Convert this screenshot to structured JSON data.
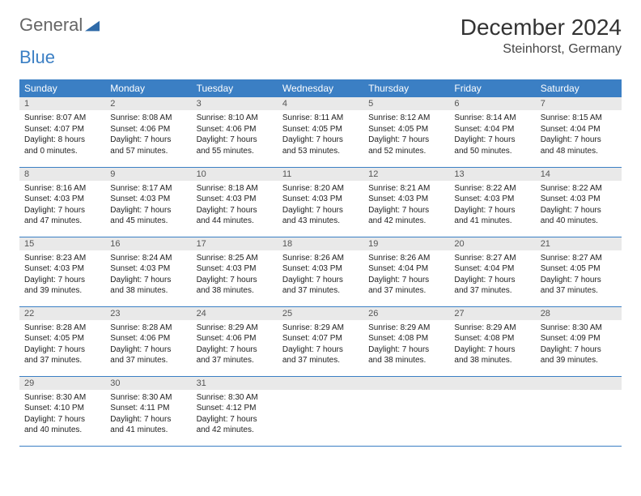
{
  "logo": {
    "text1": "General",
    "text2": "Blue"
  },
  "title": {
    "month": "December 2024",
    "location": "Steinhorst, Germany"
  },
  "dayHeaders": [
    "Sunday",
    "Monday",
    "Tuesday",
    "Wednesday",
    "Thursday",
    "Friday",
    "Saturday"
  ],
  "colors": {
    "headerBg": "#3b7fc4",
    "headerText": "#ffffff",
    "dayNumBg": "#e9e9e9",
    "border": "#3b7fc4"
  },
  "weeks": [
    [
      {
        "n": "1",
        "sr": "Sunrise: 8:07 AM",
        "ss": "Sunset: 4:07 PM",
        "d1": "Daylight: 8 hours",
        "d2": "and 0 minutes."
      },
      {
        "n": "2",
        "sr": "Sunrise: 8:08 AM",
        "ss": "Sunset: 4:06 PM",
        "d1": "Daylight: 7 hours",
        "d2": "and 57 minutes."
      },
      {
        "n": "3",
        "sr": "Sunrise: 8:10 AM",
        "ss": "Sunset: 4:06 PM",
        "d1": "Daylight: 7 hours",
        "d2": "and 55 minutes."
      },
      {
        "n": "4",
        "sr": "Sunrise: 8:11 AM",
        "ss": "Sunset: 4:05 PM",
        "d1": "Daylight: 7 hours",
        "d2": "and 53 minutes."
      },
      {
        "n": "5",
        "sr": "Sunrise: 8:12 AM",
        "ss": "Sunset: 4:05 PM",
        "d1": "Daylight: 7 hours",
        "d2": "and 52 minutes."
      },
      {
        "n": "6",
        "sr": "Sunrise: 8:14 AM",
        "ss": "Sunset: 4:04 PM",
        "d1": "Daylight: 7 hours",
        "d2": "and 50 minutes."
      },
      {
        "n": "7",
        "sr": "Sunrise: 8:15 AM",
        "ss": "Sunset: 4:04 PM",
        "d1": "Daylight: 7 hours",
        "d2": "and 48 minutes."
      }
    ],
    [
      {
        "n": "8",
        "sr": "Sunrise: 8:16 AM",
        "ss": "Sunset: 4:03 PM",
        "d1": "Daylight: 7 hours",
        "d2": "and 47 minutes."
      },
      {
        "n": "9",
        "sr": "Sunrise: 8:17 AM",
        "ss": "Sunset: 4:03 PM",
        "d1": "Daylight: 7 hours",
        "d2": "and 45 minutes."
      },
      {
        "n": "10",
        "sr": "Sunrise: 8:18 AM",
        "ss": "Sunset: 4:03 PM",
        "d1": "Daylight: 7 hours",
        "d2": "and 44 minutes."
      },
      {
        "n": "11",
        "sr": "Sunrise: 8:20 AM",
        "ss": "Sunset: 4:03 PM",
        "d1": "Daylight: 7 hours",
        "d2": "and 43 minutes."
      },
      {
        "n": "12",
        "sr": "Sunrise: 8:21 AM",
        "ss": "Sunset: 4:03 PM",
        "d1": "Daylight: 7 hours",
        "d2": "and 42 minutes."
      },
      {
        "n": "13",
        "sr": "Sunrise: 8:22 AM",
        "ss": "Sunset: 4:03 PM",
        "d1": "Daylight: 7 hours",
        "d2": "and 41 minutes."
      },
      {
        "n": "14",
        "sr": "Sunrise: 8:22 AM",
        "ss": "Sunset: 4:03 PM",
        "d1": "Daylight: 7 hours",
        "d2": "and 40 minutes."
      }
    ],
    [
      {
        "n": "15",
        "sr": "Sunrise: 8:23 AM",
        "ss": "Sunset: 4:03 PM",
        "d1": "Daylight: 7 hours",
        "d2": "and 39 minutes."
      },
      {
        "n": "16",
        "sr": "Sunrise: 8:24 AM",
        "ss": "Sunset: 4:03 PM",
        "d1": "Daylight: 7 hours",
        "d2": "and 38 minutes."
      },
      {
        "n": "17",
        "sr": "Sunrise: 8:25 AM",
        "ss": "Sunset: 4:03 PM",
        "d1": "Daylight: 7 hours",
        "d2": "and 38 minutes."
      },
      {
        "n": "18",
        "sr": "Sunrise: 8:26 AM",
        "ss": "Sunset: 4:03 PM",
        "d1": "Daylight: 7 hours",
        "d2": "and 37 minutes."
      },
      {
        "n": "19",
        "sr": "Sunrise: 8:26 AM",
        "ss": "Sunset: 4:04 PM",
        "d1": "Daylight: 7 hours",
        "d2": "and 37 minutes."
      },
      {
        "n": "20",
        "sr": "Sunrise: 8:27 AM",
        "ss": "Sunset: 4:04 PM",
        "d1": "Daylight: 7 hours",
        "d2": "and 37 minutes."
      },
      {
        "n": "21",
        "sr": "Sunrise: 8:27 AM",
        "ss": "Sunset: 4:05 PM",
        "d1": "Daylight: 7 hours",
        "d2": "and 37 minutes."
      }
    ],
    [
      {
        "n": "22",
        "sr": "Sunrise: 8:28 AM",
        "ss": "Sunset: 4:05 PM",
        "d1": "Daylight: 7 hours",
        "d2": "and 37 minutes."
      },
      {
        "n": "23",
        "sr": "Sunrise: 8:28 AM",
        "ss": "Sunset: 4:06 PM",
        "d1": "Daylight: 7 hours",
        "d2": "and 37 minutes."
      },
      {
        "n": "24",
        "sr": "Sunrise: 8:29 AM",
        "ss": "Sunset: 4:06 PM",
        "d1": "Daylight: 7 hours",
        "d2": "and 37 minutes."
      },
      {
        "n": "25",
        "sr": "Sunrise: 8:29 AM",
        "ss": "Sunset: 4:07 PM",
        "d1": "Daylight: 7 hours",
        "d2": "and 37 minutes."
      },
      {
        "n": "26",
        "sr": "Sunrise: 8:29 AM",
        "ss": "Sunset: 4:08 PM",
        "d1": "Daylight: 7 hours",
        "d2": "and 38 minutes."
      },
      {
        "n": "27",
        "sr": "Sunrise: 8:29 AM",
        "ss": "Sunset: 4:08 PM",
        "d1": "Daylight: 7 hours",
        "d2": "and 38 minutes."
      },
      {
        "n": "28",
        "sr": "Sunrise: 8:30 AM",
        "ss": "Sunset: 4:09 PM",
        "d1": "Daylight: 7 hours",
        "d2": "and 39 minutes."
      }
    ],
    [
      {
        "n": "29",
        "sr": "Sunrise: 8:30 AM",
        "ss": "Sunset: 4:10 PM",
        "d1": "Daylight: 7 hours",
        "d2": "and 40 minutes."
      },
      {
        "n": "30",
        "sr": "Sunrise: 8:30 AM",
        "ss": "Sunset: 4:11 PM",
        "d1": "Daylight: 7 hours",
        "d2": "and 41 minutes."
      },
      {
        "n": "31",
        "sr": "Sunrise: 8:30 AM",
        "ss": "Sunset: 4:12 PM",
        "d1": "Daylight: 7 hours",
        "d2": "and 42 minutes."
      },
      null,
      null,
      null,
      null
    ]
  ]
}
